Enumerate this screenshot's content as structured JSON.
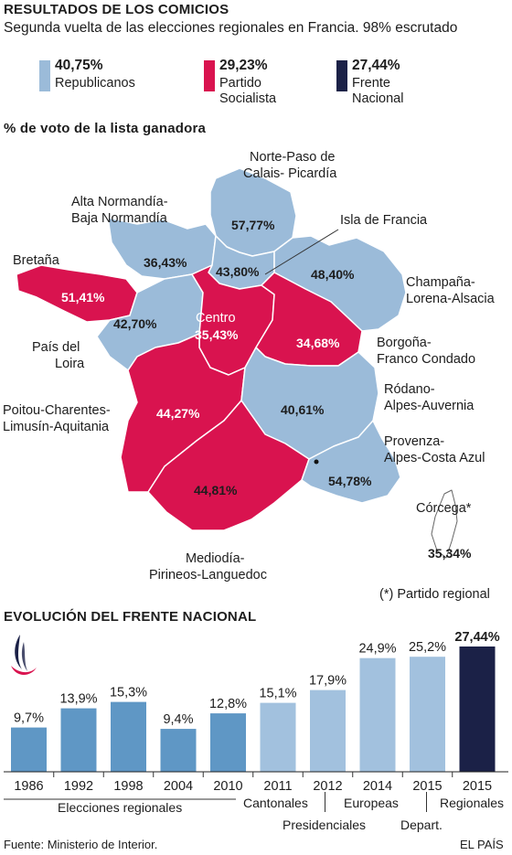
{
  "header": {
    "title": "RESULTADOS DE LOS COMICIOS",
    "subtitle": "Segunda vuelta de las elecciones regionales en Francia. 98% escrutado"
  },
  "colors": {
    "republicanos": "#9bbbd9",
    "socialista": "#d9134f",
    "frente": "#1b2147",
    "regionales_bar": "#5f97c5",
    "other_bar": "#a2c1de"
  },
  "legend": [
    {
      "pct": "40,75%",
      "name_1": "Republicanos",
      "name_2": "",
      "color": "#9bbbd9"
    },
    {
      "pct": "29,23%",
      "name_1": "Partido",
      "name_2": "Socialista",
      "color": "#d9134f"
    },
    {
      "pct": "27,44%",
      "name_1": "Frente",
      "name_2": "Nacional",
      "color": "#1b2147"
    }
  ],
  "map": {
    "heading": "% de voto de la lista ganadora",
    "regions": {
      "norte": {
        "name_1": "Norte-Paso de",
        "name_2": "Calais- Picardía",
        "pct": "57,77%",
        "winner": "republicanos"
      },
      "normandia": {
        "name_1": "Alta Normandía-",
        "name_2": "Baja Normandía",
        "pct": "36,43%",
        "winner": "republicanos"
      },
      "isla": {
        "name_1": "Isla de Francia",
        "pct": "43,80%",
        "winner": "republicanos"
      },
      "bretana": {
        "name_1": "Bretaña",
        "pct": "51,41%",
        "winner": "socialista"
      },
      "champana": {
        "name_1": "Champaña-",
        "name_2": "Lorena-Alsacia",
        "pct": "48,40%",
        "winner": "republicanos"
      },
      "loira": {
        "name_1": "País del",
        "name_2": "Loira",
        "pct": "42,70%",
        "winner": "republicanos"
      },
      "centro": {
        "name_1": "Centro",
        "pct": "35,43%",
        "winner": "socialista"
      },
      "borgona": {
        "name_1": "Borgoña-",
        "name_2": "Franco Condado",
        "pct": "34,68%",
        "winner": "socialista"
      },
      "poitou": {
        "name_1": "Poitou-Charentes-",
        "name_2": "Limusín-Aquitania",
        "pct": "44,27%",
        "winner": "socialista"
      },
      "rodano": {
        "name_1": "Ródano-",
        "name_2": "Alpes-Auvernia",
        "pct": "40,61%",
        "winner": "republicanos"
      },
      "provenza": {
        "name_1": "Provenza-",
        "name_2": "Alpes-Costa Azul",
        "pct": "54,78%",
        "winner": "republicanos"
      },
      "mediodia": {
        "name_1": "Mediodía-",
        "name_2": "Pirineos-Languedoc",
        "pct": "44,81%",
        "winner": "socialista"
      },
      "corcega": {
        "name_1": "Córcega*",
        "pct": "35,34%",
        "winner": "none"
      }
    },
    "footnote": "(*) Partido regional"
  },
  "chart_data": {
    "type": "bar",
    "title": "EVOLUCIÓN DEL FRENTE NACIONAL",
    "categories": [
      "1986",
      "1992",
      "1998",
      "2004",
      "2010",
      "2011",
      "2012",
      "2014",
      "2015",
      "2015"
    ],
    "values": [
      9.7,
      13.9,
      15.3,
      9.4,
      12.8,
      15.1,
      17.9,
      24.9,
      25.2,
      27.44
    ],
    "value_labels": [
      "9,7%",
      "13,9%",
      "15,3%",
      "9,4%",
      "12,8%",
      "15,1%",
      "17,9%",
      "24,9%",
      "25,2%",
      "27,44%"
    ],
    "bar_kinds": [
      "regionales",
      "regionales",
      "regionales",
      "regionales",
      "regionales",
      "other",
      "other",
      "other",
      "other",
      "frente"
    ],
    "ylim": [
      0,
      27.44
    ],
    "groups": {
      "regionales": "Elecciones regionales",
      "cantonales": "Cantonales",
      "presidenciales": "Presidenciales",
      "europeas": "Europeas",
      "depart": "Depart.",
      "regionales_2015": "Regionales"
    }
  },
  "footer": {
    "source": "Fuente: Ministerio de Interior.",
    "brand": "EL PAÍS"
  }
}
